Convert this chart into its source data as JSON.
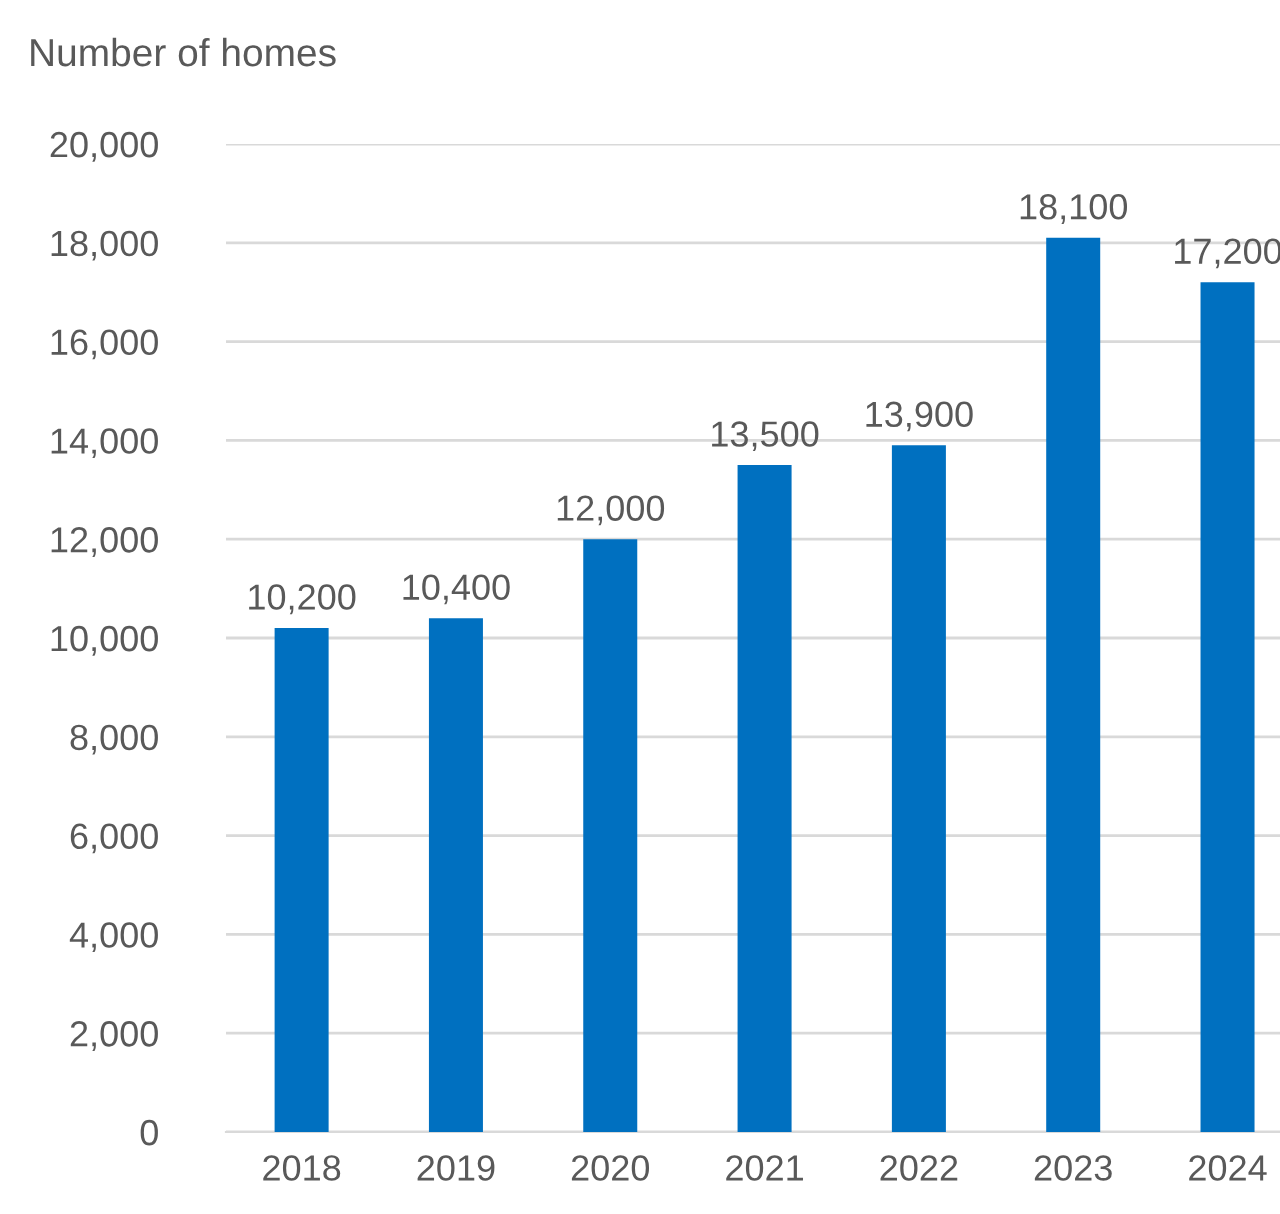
{
  "chart_data": {
    "type": "bar",
    "ylabel": "Number of homes",
    "categories": [
      "2018",
      "2019",
      "2020",
      "2021",
      "2022",
      "2023",
      "2024"
    ],
    "values": [
      10200,
      10400,
      12000,
      13500,
      13900,
      18100,
      17200
    ],
    "color": "#0070c0",
    "ylim": [
      0,
      20000
    ],
    "yticks": [
      0,
      {
        "value": 2000,
        "label": "2,000"
      },
      {
        "value": 4000,
        "label": "4,000"
      },
      {
        "value": 6000,
        "label": "6,000"
      },
      {
        "value": 8000,
        "label": "8,000"
      },
      {
        "value": 10000,
        "label": "10,000"
      },
      {
        "value": 12000,
        "label": "12,000"
      },
      {
        "value": 14000,
        "label": "14,000"
      },
      {
        "value": 16000,
        "label": "16,000"
      },
      {
        "value": 18000,
        "label": "18,000"
      },
      {
        "value": 20000,
        "label": "20,000"
      }
    ],
    "value_labels": [
      "10,200",
      "10,400",
      "12,000",
      "13,500",
      "13,900",
      "18,100",
      "17,200"
    ],
    "grid": "y",
    "legend": false
  }
}
